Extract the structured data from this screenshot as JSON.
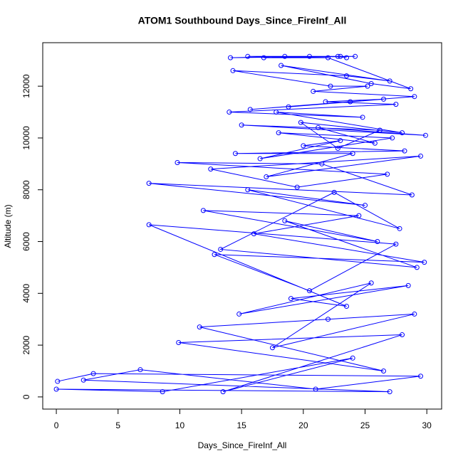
{
  "chart_data": {
    "type": "line",
    "title": "ATOM1 Southbound Days_Since_FireInf_All",
    "x_label": "Days_Since_FireInf_All",
    "y_label": "Altitude (m)",
    "x": [
      0.1,
      3.0,
      29.5,
      21.0,
      6.8,
      2.2,
      27.0,
      0.0,
      8.6,
      24.0,
      13.5,
      28.0,
      9.9,
      26.5,
      11.6,
      22.0,
      29.0,
      17.5,
      25.5,
      14.8,
      28.5,
      19.0,
      23.5,
      7.5,
      27.5,
      20.5,
      12.8,
      29.8,
      16.0,
      24.5,
      11.9,
      26.0,
      18.5,
      29.2,
      13.3,
      22.5,
      27.8,
      15.5,
      25.0,
      7.5,
      28.8,
      21.5,
      9.8,
      26.8,
      19.5,
      12.5,
      29.5,
      17.0,
      24.0,
      14.5,
      28.2,
      20.0,
      23.0,
      16.5,
      27.2,
      18.0,
      25.8,
      21.2,
      29.9,
      15.0,
      26.2,
      22.8,
      19.8,
      28.0,
      17.8,
      24.8,
      14.0,
      27.5,
      21.8,
      26.5,
      18.8,
      23.8,
      15.7,
      29.0,
      20.8,
      25.2,
      22.2,
      14.3,
      23.5,
      27.0,
      18.2,
      25.5,
      28.7,
      22.0,
      16.8,
      24.2,
      15.5,
      20.5,
      23.0,
      14.1,
      18.5,
      22.8,
      23.5
    ],
    "series": [
      {
        "color": "#0000ff",
        "values": [
          600,
          900,
          800,
          300,
          1050,
          650,
          200,
          300,
          200,
          1500,
          200,
          2400,
          2100,
          1000,
          2700,
          3000,
          3200,
          1900,
          4400,
          3200,
          4300,
          3800,
          3500,
          6650,
          5900,
          4100,
          5500,
          5200,
          6300,
          7000,
          7200,
          6000,
          6800,
          5000,
          5700,
          7900,
          6500,
          8000,
          7400,
          8250,
          7800,
          9000,
          9050,
          8600,
          8100,
          8800,
          9300,
          8500,
          9400,
          9400,
          9500,
          9700,
          9900,
          9200,
          10000,
          10200,
          9800,
          10400,
          10100,
          10500,
          10300,
          9600,
          10600,
          10200,
          11000,
          10800,
          11000,
          11300,
          11400,
          11500,
          11200,
          11400,
          11100,
          11600,
          11800,
          12000,
          12000,
          12600,
          12400,
          12200,
          12800,
          12100,
          11900,
          13100,
          13100,
          13150,
          13150,
          13150,
          13150,
          13100,
          13150,
          13150,
          13100
        ]
      }
    ],
    "xlim": [
      -1.1,
      31.2
    ],
    "ylim": [
      -470,
      13680
    ],
    "xticks": [
      0,
      5,
      10,
      15,
      20,
      25,
      30
    ],
    "yticks": [
      0,
      2000,
      4000,
      6000,
      8000,
      10000,
      12000
    ]
  }
}
